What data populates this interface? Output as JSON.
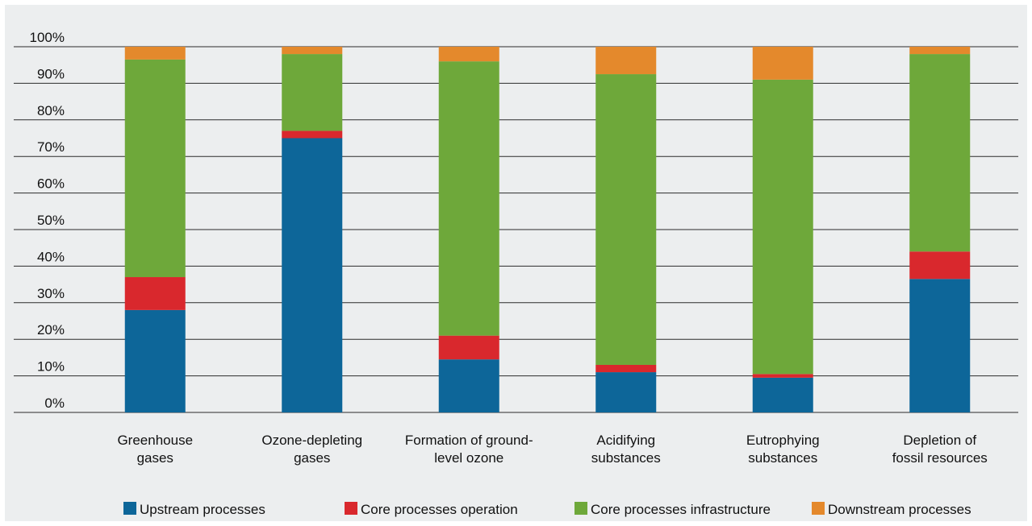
{
  "chart_data": {
    "type": "bar",
    "stacked": true,
    "categories": [
      [
        "Greenhouse",
        "gases"
      ],
      [
        "Ozone-depleting",
        "gases"
      ],
      [
        "Formation of ground-",
        "level ozone"
      ],
      [
        "Acidifying",
        "substances"
      ],
      [
        "Eutrophying",
        "substances"
      ],
      [
        "Depletion of",
        "fossil resources"
      ]
    ],
    "series": [
      {
        "name": "Upstream processes",
        "color": "#0d6699",
        "values": [
          28,
          75,
          14.5,
          11,
          9.5,
          36.5
        ]
      },
      {
        "name": "Core processes operation",
        "color": "#d9282d",
        "values": [
          9,
          2,
          6.5,
          2,
          1,
          7.5
        ]
      },
      {
        "name": "Core processes infrastructure",
        "color": "#6ea83a",
        "values": [
          59.5,
          21,
          75,
          79.5,
          80.5,
          54
        ]
      },
      {
        "name": "Downstream processes",
        "color": "#e4892c",
        "values": [
          3.5,
          2,
          4,
          7.5,
          9,
          2
        ]
      }
    ],
    "yticks": [
      "0%",
      "10%",
      "20%",
      "30%",
      "40%",
      "50%",
      "60%",
      "70%",
      "80%",
      "90%",
      "100%"
    ],
    "ylim": [
      0,
      100
    ],
    "grid": true,
    "legend": "bottom"
  }
}
